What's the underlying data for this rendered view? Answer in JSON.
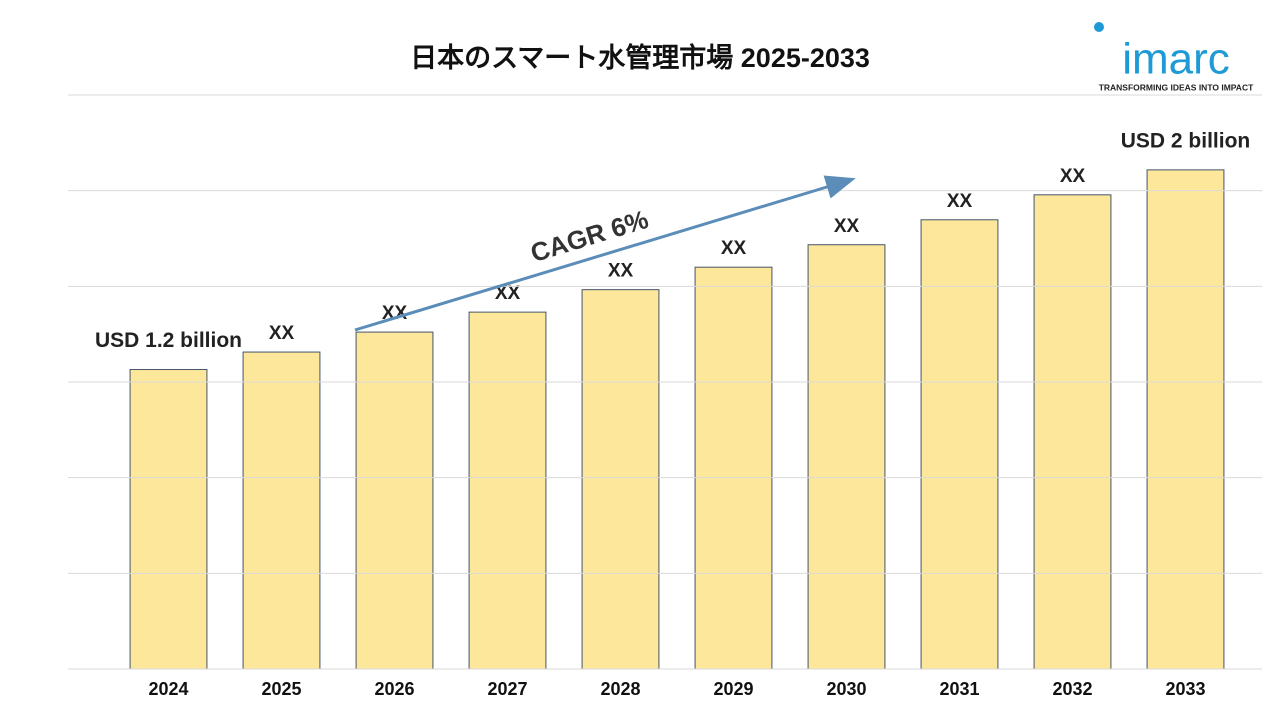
{
  "chart_data": {
    "type": "bar",
    "title": "日本のスマート水管理市場 2025-2033",
    "categories": [
      "2024",
      "2025",
      "2026",
      "2027",
      "2028",
      "2029",
      "2030",
      "2031",
      "2032",
      "2033"
    ],
    "values": [
      1.2,
      1.27,
      1.35,
      1.43,
      1.52,
      1.61,
      1.7,
      1.8,
      1.9,
      2
    ],
    "value_labels": [
      "USD 1.2 billion",
      "XX",
      "XX",
      "XX",
      "XX",
      "XX",
      "XX",
      "XX",
      "XX",
      "USD 2 billion"
    ],
    "color": "#fde79b",
    "ylim": [
      0,
      2.3
    ],
    "grid": true,
    "annotation": "CAGR 6%",
    "logo": {
      "name": "imarc",
      "tagline": "TRANSFORMING IDEAS INTO IMPACT"
    }
  }
}
